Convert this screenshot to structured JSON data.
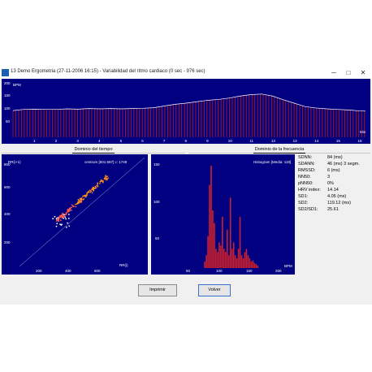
{
  "window": {
    "title": "13 Demo Ergometria (27-11-2006 16:15) - Variabilidad del ritmo cardiaco (0 sec - 976 sec)",
    "controls": {
      "minimize": "─",
      "maximize": "□",
      "close": "✕"
    }
  },
  "top_chart": {
    "y_unit": "BPM",
    "y_ticks": [
      "200",
      "150",
      "100",
      "50"
    ],
    "x_unit": "Min",
    "x_ticks": [
      "1",
      "2",
      "3",
      "4",
      "5",
      "6",
      "7",
      "8",
      "9",
      "10",
      "11",
      "12",
      "13",
      "14",
      "15",
      "16"
    ]
  },
  "sections": {
    "time_domain": "Dominio del tiempo",
    "freq_domain": "Dominio de la frecuencia"
  },
  "scatter": {
    "y_label": "RR(i+1)",
    "x_label": "RR(i)",
    "info": "centrum [501.597] c: 1749",
    "y_ticks": [
      "800",
      "600",
      "400",
      "200"
    ],
    "x_ticks": [
      "200",
      "400",
      "600"
    ]
  },
  "histogram": {
    "title": "Histogram [Media: 119]",
    "x_unit": "BPM",
    "y_ticks": [
      "150",
      "100",
      "50"
    ],
    "x_ticks": [
      "50",
      "100",
      "150",
      "200"
    ]
  },
  "stats": [
    {
      "key": "SDNN:",
      "value": "84 (ms)"
    },
    {
      "key": "SDANN:",
      "value": "46 (ms) 3 segm."
    },
    {
      "key": "RMSSD:",
      "value": "6 (ms)"
    },
    {
      "key": "NN50:",
      "value": "3"
    },
    {
      "key": "pNN50:",
      "value": "0%"
    },
    {
      "key": "HRV index:",
      "value": "14.14"
    },
    {
      "key": "SD1:",
      "value": "4.05 (ms)"
    },
    {
      "key": "SD2:",
      "value": "119.12 (ms)"
    },
    {
      "key": "SD2/SD1:",
      "value": "25.61"
    }
  ],
  "buttons": {
    "print": "Imprimir",
    "back": "Volver"
  },
  "chart_data": [
    {
      "type": "area",
      "title": "",
      "xlabel": "Min",
      "ylabel": "BPM",
      "xlim": [
        0,
        16.3
      ],
      "ylim": [
        0,
        200
      ],
      "x": [
        0,
        0.5,
        1,
        1.5,
        2,
        2.5,
        3,
        3.5,
        4,
        4.5,
        5,
        5.5,
        6,
        6.5,
        7,
        7.5,
        8,
        8.5,
        9,
        9.5,
        10,
        10.5,
        11,
        11.5,
        12,
        12.5,
        13,
        13.5,
        14,
        14.5,
        15,
        15.5,
        16,
        16.3
      ],
      "values": [
        94,
        98,
        99,
        98,
        98,
        100,
        99,
        101,
        100,
        101,
        100,
        101,
        102,
        104,
        110,
        116,
        120,
        125,
        130,
        133,
        138,
        145,
        150,
        152,
        145,
        132,
        120,
        108,
        103,
        100,
        98,
        96,
        93,
        92
      ]
    },
    {
      "type": "histogram",
      "title": "Histogram [Media: 119]",
      "xlabel": "BPM",
      "xlim": [
        40,
        200
      ],
      "ylim": [
        0,
        170
      ],
      "bins": [
        94,
        96,
        98,
        100,
        102,
        104,
        106,
        108,
        110,
        112,
        114,
        116,
        118,
        120,
        122,
        124,
        126,
        128,
        130,
        132,
        134,
        136,
        138,
        140,
        142,
        144,
        146,
        148,
        150,
        152,
        154,
        156,
        158,
        160
      ],
      "counts": [
        10,
        20,
        50,
        130,
        160,
        90,
        70,
        30,
        25,
        40,
        35,
        80,
        30,
        25,
        60,
        20,
        110,
        30,
        40,
        20,
        15,
        30,
        80,
        20,
        15,
        25,
        30,
        20,
        15,
        10,
        12,
        8,
        6,
        4
      ]
    }
  ]
}
